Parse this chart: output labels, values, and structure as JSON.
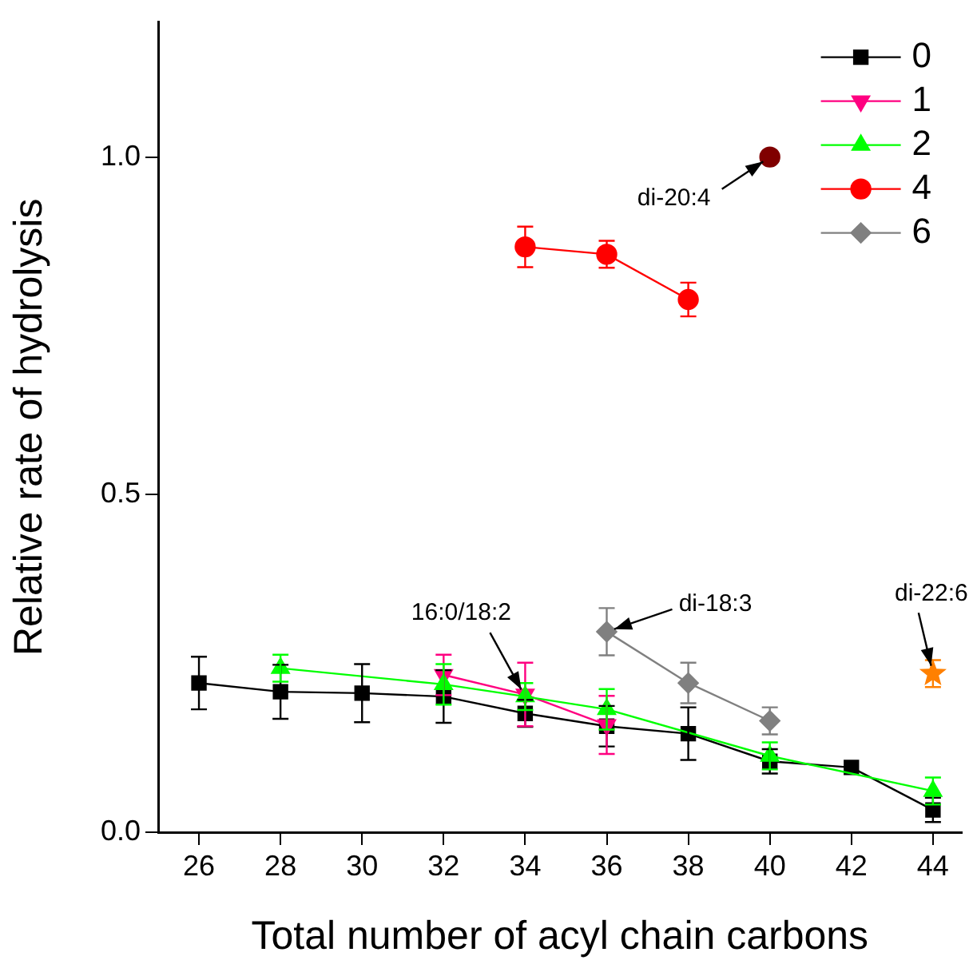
{
  "chart_data": {
    "type": "line",
    "xlabel": "Total number of acyl chain carbons",
    "ylabel": "Relative rate of hydrolysis",
    "xlim": [
      25,
      44.7
    ],
    "xticks": [
      26,
      28,
      30,
      32,
      34,
      36,
      38,
      40,
      42,
      44
    ],
    "ylim": [
      0,
      1.2
    ],
    "yticks": [
      {
        "value": 0,
        "label": "0.0"
      },
      {
        "value": 0.5,
        "label": "0.5"
      },
      {
        "value": 1,
        "label": "1.0"
      }
    ],
    "grid": false,
    "legend": "top right",
    "line_style": "solid",
    "series": [
      {
        "name": "0",
        "color": "#000000",
        "marker": "square",
        "x": [
          26,
          28,
          30,
          32,
          34,
          36,
          38,
          40,
          42,
          44
        ],
        "values": [
          0.221,
          0.208,
          0.206,
          0.201,
          0.176,
          0.157,
          0.146,
          0.105,
          0.096,
          0.033
        ],
        "errors": [
          0.039,
          0.04,
          0.043,
          0.039,
          0.02,
          0.03,
          0.039,
          0.018,
          null,
          0.018
        ]
      },
      {
        "name": "1",
        "color": "#ff0080",
        "marker": "triangle-down",
        "x": [
          32,
          34,
          36
        ],
        "values": [
          0.233,
          0.204,
          0.159
        ],
        "errors": [
          0.03,
          0.047,
          0.043
        ]
      },
      {
        "name": "2",
        "color": "#00ff00",
        "marker": "triangle",
        "x": [
          28,
          32,
          34,
          36,
          40,
          44
        ],
        "values": [
          0.243,
          0.219,
          0.201,
          0.182,
          0.113,
          0.061
        ],
        "errors": [
          0.02,
          0.03,
          0.02,
          0.03,
          0.02,
          0.02
        ]
      },
      {
        "name": "4",
        "color": "#ff0000",
        "marker": "circle",
        "x": [
          34,
          36,
          38
        ],
        "values": [
          0.867,
          0.856,
          0.789
        ],
        "errors": [
          0.03,
          0.02,
          0.025
        ]
      },
      {
        "name": "6",
        "color": "#808080",
        "marker": "diamond",
        "x": [
          36,
          38,
          40
        ],
        "values": [
          0.297,
          0.221,
          0.165
        ],
        "errors": [
          0.035,
          0.03,
          0.02
        ]
      },
      {
        "color": "#800000",
        "marker": "circle",
        "x": [
          40
        ],
        "values": [
          1.0
        ]
      },
      {
        "color": "#ff8000",
        "marker": "star",
        "x": [
          44
        ],
        "values": [
          0.235
        ],
        "errors": [
          0.02
        ]
      }
    ],
    "annotations": [
      {
        "text": "di-20:4",
        "x": 40,
        "y": 1.0
      },
      {
        "text": "16:0/18:2",
        "x": 34,
        "y": 0.201
      },
      {
        "text": "di-18:3",
        "x": 36,
        "y": 0.297
      },
      {
        "text": "di-22:6",
        "x": 44,
        "y": 0.235
      }
    ]
  }
}
